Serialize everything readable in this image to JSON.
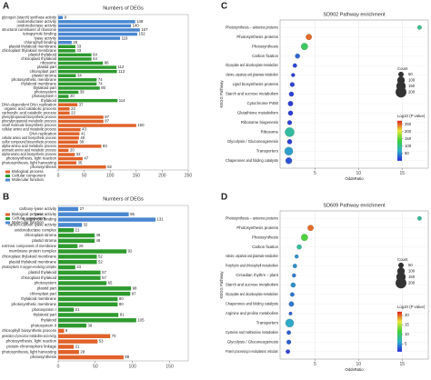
{
  "chart_data": [
    {
      "type": "bar",
      "panel": "A",
      "xlabel": "Numbers of DEGs",
      "xlim": [
        0,
        250
      ],
      "xticks": [
        0,
        50,
        100,
        150,
        200,
        250
      ],
      "legend": "bottom-left",
      "series": [
        {
          "name": "Biological process",
          "color": "#e0622a",
          "categories": [
            "DNA-dependent DNA replication",
            "organic acid catabolic process",
            "carboxylic acid catabolic process",
            "phenylpropanoid biosynthetic process",
            "phenylpropanoid metabolic process",
            "small molecule biosynthetic process",
            "cellular amino acid metabolic process",
            "DNA replication",
            "cellular amino acid biosynthetic process",
            "sulfur compound biosynthetic process",
            "alpha-amino acid metabolic process",
            "aromatic amino acid metabolic process",
            "alpha-amino acid biosynthetic process",
            "photosynthesis, light reaction",
            "photosynthesis, light harvesting",
            "photosynthesis"
          ],
          "values": [
            37,
            22,
            22,
            87,
            87,
            150,
            43,
            41,
            40,
            38,
            83,
            20,
            32,
            47,
            35,
            92
          ]
        },
        {
          "name": "Cellular component",
          "color": "#2e9a2e",
          "categories": [
            "plastid thylakoid membrane",
            "chloroplast thylakoid membrane",
            "plastid thylakoid",
            "chloroplast thylakoid",
            "ribosome",
            "plastid part",
            "chloroplast part",
            "plastid stroma",
            "photosynthetic membrane",
            "thylakoid membrane",
            "thylakoid part",
            "photosystem",
            "photosystem I",
            "thylakoid"
          ],
          "values": [
            33,
            33,
            64,
            64,
            86,
            112,
            113,
            34,
            74,
            74,
            80,
            39,
            20,
            114
          ]
        },
        {
          "name": "Molecular function",
          "color": "#4a86d0",
          "categories": [
            "glycogen (starch) synthase activity",
            "oxidoreductase activity",
            "oxidoreductase activity",
            "structural constituent of ribosome",
            "tetrapyrrole binding",
            "lyase activity",
            "chlorophyll binding"
          ],
          "values": [
            9,
            148,
            140,
            157,
            152,
            119,
            26
          ]
        }
      ]
    },
    {
      "type": "bar",
      "panel": "B",
      "xlabel": "Numbers of DEGs",
      "xlim": [
        0,
        175
      ],
      "xticks": [
        0,
        50,
        100,
        150
      ],
      "legend": "top-left",
      "series": [
        {
          "name": "Biological process",
          "color": "#e0622a",
          "categories": [
            "chlorophyll biosynthetic process",
            "generation of precursor metabolites and energy",
            "photosynthesis, light reaction",
            "protein-chromophore linkage",
            "photosynthesis, light harvesting",
            "photosynthesis"
          ],
          "values": [
            8,
            70,
            53,
            21,
            28,
            88
          ]
        },
        {
          "name": "Cellular component",
          "color": "#2e9a2e",
          "categories": [
            "oxidoreductase complex",
            "chloroplast stroma",
            "plastid stroma",
            "extrinsic component of membrane",
            "membrane protein complex",
            "chloroplast thylakoid membrane",
            "plastid thylakoid membrane",
            "photosystem II oxygen evolving complex",
            "plastid thylakoid",
            "chloroplast thylakoid",
            "photosystem",
            "plastid part",
            "chloroplast part",
            "thylakoid membrane",
            "photosynthetic membrane",
            "photosystem I",
            "thylakoid part",
            "thylakoid",
            "photosystem II"
          ],
          "values": [
            21,
            49,
            49,
            26,
            92,
            52,
            52,
            23,
            57,
            57,
            65,
            98,
            97,
            80,
            80,
            21,
            81,
            105,
            38
          ]
        },
        {
          "name": "Molecular function",
          "color": "#4a86d0",
          "categories": [
            "carboxy-lyase activity",
            "lyase activity",
            "tetrapyrrole binding",
            "carbon-carbon lyase activity"
          ],
          "values": [
            27,
            95,
            131,
            32
          ]
        }
      ]
    },
    {
      "type": "scatter",
      "panel": "C",
      "title": "SD902 Pathway enrichment",
      "xlabel": "OddsRatio",
      "ylabel": "KEGG Pathway",
      "xlim": [
        1,
        18
      ],
      "xticks": [
        5,
        10,
        15
      ],
      "grid": true,
      "categories": [
        "Photosynthesis – antenna proteins",
        "Photosynthesis proteins",
        "Photosynthesis",
        "Carbon fixation",
        "Glyoxylate and dicarboxylate metabolism",
        "Alanine, aspartate and glutamate metabolism",
        "Lipid biosynthesis proteins",
        "Starch and sucrose metabolism",
        "Cytochrome P450",
        "Glutathione metabolism",
        "Ribosome biogenesis",
        "Ribosome",
        "Glycolysis / Gluconeogenesis",
        "Transporters",
        "Chaperones and folding catalysts"
      ],
      "x": [
        17,
        4.3,
        3.8,
        3.0,
        2.7,
        2.5,
        2.4,
        2.3,
        2.2,
        2.2,
        2.1,
        2.1,
        2.1,
        2.0,
        2.0
      ],
      "count": [
        30,
        60,
        80,
        40,
        30,
        25,
        35,
        40,
        45,
        40,
        35,
        150,
        40,
        120,
        70
      ],
      "log10p": [
        100,
        250,
        120,
        30,
        15,
        10,
        12,
        12,
        10,
        10,
        10,
        90,
        10,
        60,
        20
      ],
      "size_legend": {
        "title": "Count",
        "values": [
          50,
          100,
          150,
          200
        ]
      },
      "color_legend": {
        "title": "Log10 (P value)",
        "clim": [
          0,
          275
        ],
        "ticks": [
          50,
          100,
          150,
          200,
          250
        ],
        "colors": [
          "#2b2bd9",
          "#2fb0c8",
          "#3fcf3f",
          "#e8e83a",
          "#e02020"
        ]
      }
    },
    {
      "type": "scatter",
      "panel": "D",
      "title": "SD609 Pathway enrichment",
      "xlabel": "OddsRatio",
      "ylabel": "KEGG Pathway",
      "xlim": [
        1,
        18
      ],
      "xticks": [
        5,
        10,
        15
      ],
      "grid": true,
      "categories": [
        "Photosynthesis – antenna proteins",
        "Photosynthesis proteins",
        "Photosynthesis",
        "Carbon fixation",
        "Alanine, aspartate and glutamate metabolism",
        "Porphyrin and chlorophyll metabolism",
        "Circadian rhythm – plant",
        "Starch and sucrose metabolism",
        "Glyoxylate and dicarboxylate metabolism",
        "Chaperones and folding catalysts",
        "Arginine and proline metabolism",
        "Transporters",
        "Cysteine and methionine metabolism",
        "Glycolysis / Gluconeogenesis",
        "Protein processing in endoplasmic reticulum"
      ],
      "x": [
        17,
        4.5,
        3.8,
        3.2,
        2.9,
        2.7,
        2.6,
        2.5,
        2.4,
        2.3,
        2.2,
        2.1,
        2.0,
        2.0,
        1.9
      ],
      "count": [
        30,
        60,
        80,
        40,
        25,
        30,
        25,
        40,
        30,
        45,
        20,
        120,
        30,
        35,
        30
      ],
      "log10p": [
        8,
        20,
        12,
        8,
        5,
        5,
        4,
        5,
        4,
        4,
        3,
        6,
        3,
        3,
        2
      ],
      "size_legend": {
        "title": "Count",
        "values": [
          50,
          100,
          150,
          200
        ]
      },
      "color_legend": {
        "title": "Log10 (P value)",
        "clim": [
          1,
          22
        ],
        "ticks": [
          5,
          10,
          15,
          20
        ],
        "colors": [
          "#2b2bd9",
          "#2fb0c8",
          "#3fcf3f",
          "#e8e83a",
          "#e02020"
        ]
      }
    }
  ]
}
